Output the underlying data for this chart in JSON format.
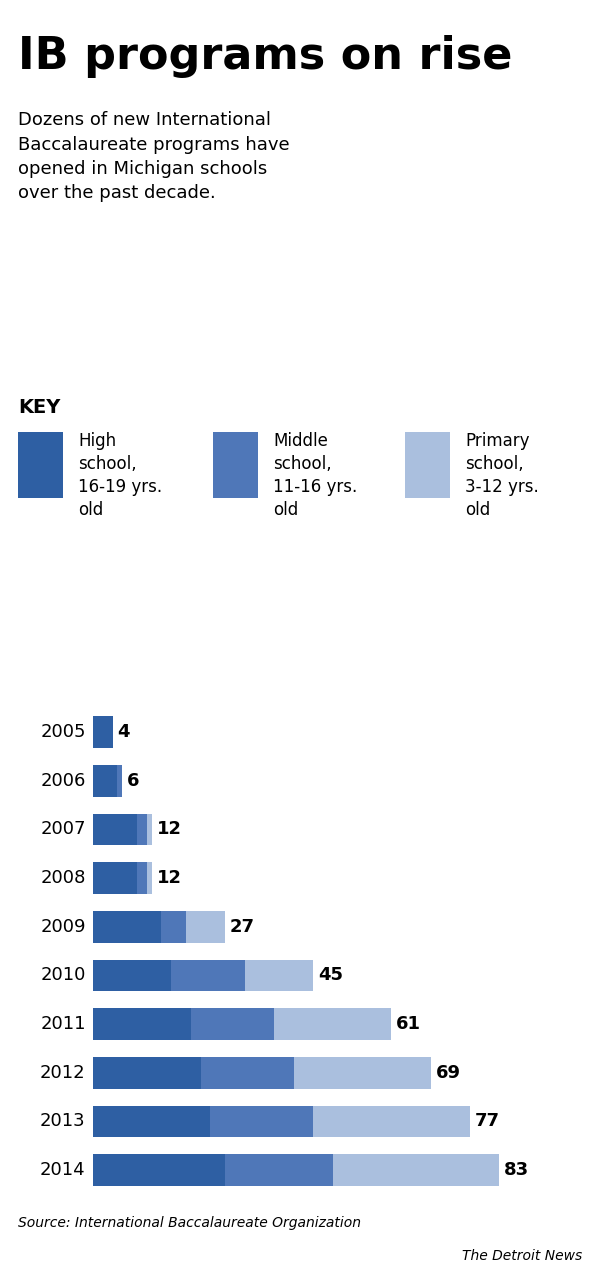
{
  "title": "IB programs on rise",
  "subtitle": "Dozens of new International\nBaccalaureate programs have\nopened in Michigan schools\nover the past decade.",
  "key_label": "KEY",
  "legend_items": [
    {
      "label": "High\nschool,\n16-19 yrs.\nold",
      "color": "#2E5FA3"
    },
    {
      "label": "Middle\nschool,\n11-16 yrs.\nold",
      "color": "#4F77B8"
    },
    {
      "label": "Primary\nschool,\n3-12 yrs.\nold",
      "color": "#AABFDE"
    }
  ],
  "years": [
    "2005",
    "2006",
    "2007",
    "2008",
    "2009",
    "2010",
    "2011",
    "2012",
    "2013",
    "2014"
  ],
  "totals": [
    4,
    6,
    12,
    12,
    27,
    45,
    61,
    69,
    77,
    83
  ],
  "high_school": [
    4,
    5,
    9,
    9,
    14,
    16,
    20,
    22,
    24,
    27
  ],
  "middle_school": [
    0,
    1,
    2,
    2,
    5,
    15,
    17,
    19,
    21,
    22
  ],
  "primary_school": [
    0,
    0,
    1,
    1,
    8,
    14,
    24,
    28,
    32,
    34
  ],
  "color_high": "#2E5FA3",
  "color_middle": "#4F77B8",
  "color_primary": "#AABFDE",
  "source_text": "Source: International Baccalaureate Organization",
  "credit_text": "The Detroit News",
  "bg_color": "#FFFFFF",
  "title_fontsize": 32,
  "subtitle_fontsize": 13,
  "bar_label_fontsize": 13,
  "year_label_fontsize": 13,
  "legend_fontsize": 12,
  "source_fontsize": 10
}
